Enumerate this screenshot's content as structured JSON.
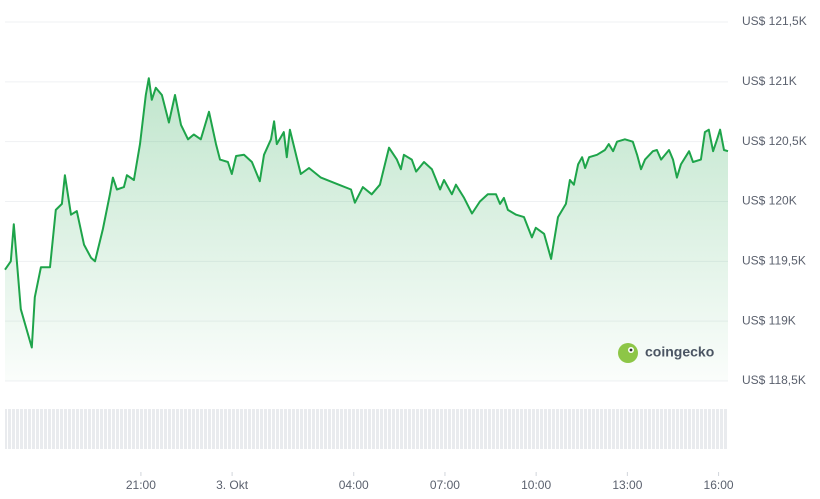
{
  "chart_data": {
    "type": "area",
    "color": "#1ea44a",
    "grid": true,
    "watermark": "coingecko",
    "xlim": [
      16.53,
      40.31
    ],
    "ylim": [
      118500,
      121500
    ],
    "yticks": [
      {
        "value": 118500,
        "label": "US$ 118,5K"
      },
      {
        "value": 119000,
        "label": "US$ 119K"
      },
      {
        "value": 119500,
        "label": "US$ 119,5K"
      },
      {
        "value": 120000,
        "label": "US$ 120K"
      },
      {
        "value": 120500,
        "label": "US$ 120,5K"
      },
      {
        "value": 121000,
        "label": "US$ 121K"
      },
      {
        "value": 121500,
        "label": "US$ 121,5K"
      }
    ],
    "xticks": [
      {
        "value": 21,
        "label": "21:00"
      },
      {
        "value": 24,
        "label": "3. Okt"
      },
      {
        "value": 28,
        "label": "04:00"
      },
      {
        "value": 31,
        "label": "07:00"
      },
      {
        "value": 34,
        "label": "10:00"
      },
      {
        "value": 37,
        "label": "13:00"
      },
      {
        "value": 40,
        "label": "16:00"
      }
    ],
    "x": [
      16.53,
      16.72,
      16.82,
      17.05,
      17.41,
      17.51,
      17.71,
      18.01,
      18.2,
      18.4,
      18.5,
      18.7,
      18.89,
      19.13,
      19.36,
      19.49,
      19.75,
      19.98,
      20.08,
      20.21,
      20.44,
      20.54,
      20.77,
      20.97,
      21.16,
      21.26,
      21.36,
      21.49,
      21.69,
      21.92,
      22.12,
      22.32,
      22.55,
      22.74,
      22.97,
      23.24,
      23.47,
      23.6,
      23.86,
      23.99,
      24.13,
      24.39,
      24.65,
      24.91,
      25.05,
      25.28,
      25.38,
      25.47,
      25.7,
      25.8,
      25.9,
      26.16,
      26.26,
      26.53,
      26.92,
      27.22,
      27.51,
      27.91,
      28.04,
      28.3,
      28.59,
      28.86,
      29.16,
      29.42,
      29.55,
      29.65,
      29.91,
      30.05,
      30.31,
      30.57,
      30.84,
      30.97,
      31.23,
      31.36,
      31.63,
      31.89,
      32.15,
      32.41,
      32.68,
      32.81,
      32.94,
      33.07,
      33.34,
      33.6,
      33.86,
      33.99,
      34.26,
      34.49,
      34.72,
      34.98,
      35.11,
      35.24,
      35.38,
      35.51,
      35.61,
      35.74,
      36.0,
      36.26,
      36.39,
      36.53,
      36.66,
      36.92,
      37.18,
      37.32,
      37.45,
      37.58,
      37.84,
      37.97,
      38.11,
      38.37,
      38.5,
      38.63,
      38.76,
      39.03,
      39.16,
      39.42,
      39.55,
      39.68,
      39.82,
      39.95,
      40.05,
      40.18,
      40.31
    ],
    "values": [
      119430,
      119500,
      119810,
      119100,
      118780,
      119200,
      119450,
      119450,
      119930,
      119980,
      120220,
      119890,
      119920,
      119640,
      119530,
      119500,
      119770,
      120060,
      120200,
      120100,
      120120,
      120220,
      120180,
      120480,
      120890,
      121030,
      120850,
      120950,
      120890,
      120660,
      120890,
      120640,
      120520,
      120560,
      120520,
      120750,
      120480,
      120350,
      120330,
      120230,
      120380,
      120390,
      120330,
      120170,
      120390,
      120520,
      120670,
      120480,
      120580,
      120370,
      120600,
      120330,
      120230,
      120280,
      120200,
      120170,
      120140,
      120100,
      119990,
      120120,
      120060,
      120140,
      120450,
      120350,
      120270,
      120390,
      120350,
      120250,
      120330,
      120270,
      120100,
      120180,
      120060,
      120140,
      120030,
      119900,
      120000,
      120060,
      120060,
      119980,
      120030,
      119930,
      119890,
      119870,
      119700,
      119780,
      119730,
      119520,
      119870,
      119980,
      120180,
      120140,
      120310,
      120370,
      120280,
      120370,
      120390,
      120430,
      120480,
      120420,
      120500,
      120520,
      120500,
      120390,
      120270,
      120350,
      120420,
      120430,
      120350,
      120430,
      120350,
      120200,
      120310,
      120420,
      120330,
      120350,
      120580,
      120600,
      120420,
      120520,
      120600,
      120430,
      120420
    ]
  }
}
